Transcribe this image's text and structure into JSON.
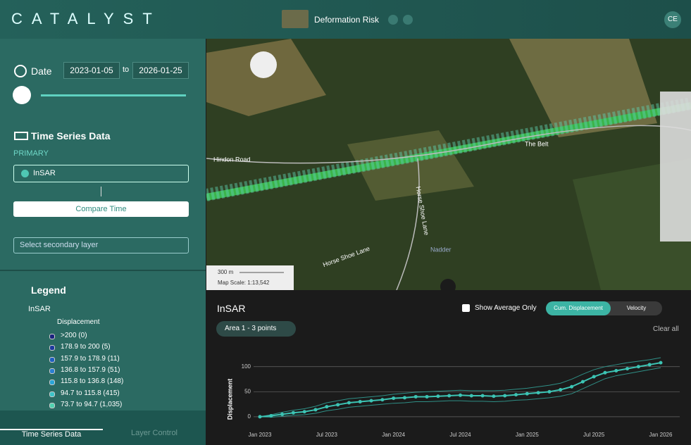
{
  "header": {
    "logo": "CATALYST",
    "layer": "Deformation Risk",
    "user": "CE"
  },
  "sidebar": {
    "date_label": "Date",
    "date_from": "2023-01-05",
    "date_to_word": "to",
    "date_to": "2026-01-25",
    "ts_title": "Time Series Data",
    "primary": "PRIMARY",
    "primary_layer": "InSAR",
    "compare": "Compare Time",
    "secondary": "Select secondary layer",
    "legend_title": "Legend",
    "legend_root": "InSAR",
    "legend_group": "Displacement",
    "legend_items": [
      ">200 (0)",
      "178.9 to 200 (5)",
      "157.9 to 178.9 (11)",
      "136.8 to 157.9 (51)",
      "115.8 to 136.8 (148)",
      "94.7 to 115.8 (415)",
      "73.7 to 94.7 (1,035)"
    ],
    "legend_colors": [
      "#1a237e",
      "#1e3a9e",
      "#1f5fbf",
      "#2a7fd0",
      "#2aa6d6",
      "#3cc4c8",
      "#4fd3b0"
    ],
    "tabs": [
      "Time Series Data",
      "Layer Control"
    ]
  },
  "map": {
    "labels": [
      "Hindon Road",
      "The Belt",
      "Horse Shoe Lane",
      "Horse Shoe Lane",
      "Nadder"
    ],
    "scale_bar": "300 m",
    "scale": "Map Scale: 1:13,542"
  },
  "panel": {
    "show_average": "Show Average Only",
    "cum": "Cum. Displacement",
    "velocity": "Velocity",
    "area": "Area 1 - 3 points",
    "clear": "Clear all"
  },
  "chart_data": {
    "type": "line",
    "title": "InSAR",
    "y_label": "Displacement",
    "categories": [
      "Jan 2023",
      null,
      null,
      null,
      null,
      null,
      "Jul 2023",
      null,
      null,
      null,
      null,
      null,
      "Jan 2024",
      null,
      null,
      null,
      null,
      null,
      "Jul 2024",
      null,
      null,
      null,
      null,
      null,
      "Jan 2025",
      null,
      null,
      null,
      null,
      null,
      "Jul 2025",
      null,
      null,
      null,
      null,
      null,
      "Jan 2026"
    ],
    "series": [
      {
        "color": "#3cc4b4",
        "values": [
          0,
          2,
          5,
          8,
          10,
          14,
          20,
          24,
          28,
          30,
          32,
          34,
          37,
          38,
          40,
          40,
          41,
          42,
          43,
          42,
          42,
          41,
          42,
          44,
          46,
          48,
          50,
          54,
          60,
          70,
          80,
          88,
          92,
          96,
          100,
          104,
          108
        ]
      },
      {
        "color": "#2f8f86",
        "values": [
          0,
          4,
          9,
          13,
          16,
          21,
          28,
          32,
          36,
          38,
          40,
          42,
          45,
          47,
          49,
          50,
          51,
          52,
          53,
          52,
          52,
          52,
          53,
          55,
          57,
          60,
          63,
          67,
          75,
          85,
          94,
          100,
          104,
          108,
          111,
          114,
          118
        ]
      },
      {
        "color": "#2f8f86",
        "values": [
          0,
          -1,
          1,
          3,
          4,
          7,
          12,
          15,
          19,
          21,
          23,
          25,
          27,
          28,
          30,
          30,
          31,
          32,
          32,
          31,
          31,
          30,
          31,
          33,
          34,
          36,
          38,
          41,
          46,
          56,
          66,
          76,
          82,
          86,
          90,
          94,
          98
        ]
      }
    ],
    "ylim": [
      -10,
      125
    ],
    "yticks": [
      0,
      50,
      100
    ],
    "grid": true
  }
}
